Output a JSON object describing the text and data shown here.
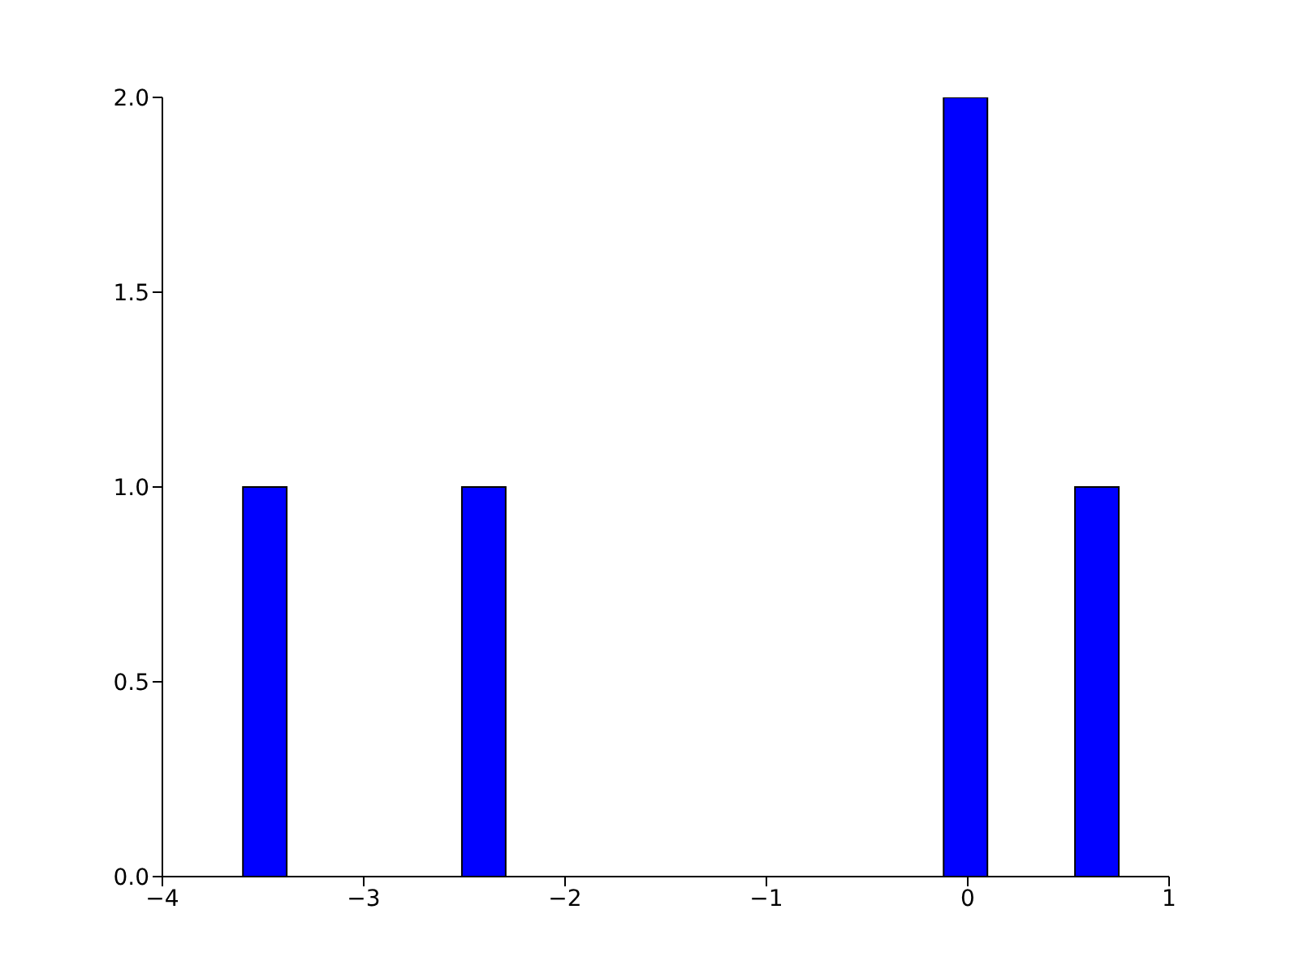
{
  "chart_data": {
    "type": "histogram",
    "bins": [
      -3.6,
      -3.3825,
      -3.165,
      -2.9475,
      -2.73,
      -2.5125,
      -2.295,
      -2.0775,
      -1.86,
      -1.6425,
      -1.425,
      -1.2075,
      -0.99,
      -0.7725,
      -0.555,
      -0.3375,
      -0.12,
      0.0975,
      0.315,
      0.5325,
      0.75
    ],
    "values": [
      1,
      0,
      0,
      0,
      0,
      1,
      0,
      0,
      0,
      0,
      0,
      0,
      0,
      0,
      0,
      0,
      2,
      0,
      0,
      1
    ],
    "color": "#0000ff",
    "xlim": [
      -4,
      1
    ],
    "xticks": [
      -4,
      -3,
      -2,
      -1,
      0,
      1
    ],
    "ylim": [
      0,
      2
    ],
    "yticks": [
      {
        "value": 0,
        "label": "0.0"
      },
      {
        "value": 0.5,
        "label": "0.5"
      },
      {
        "value": 1,
        "label": "1.0"
      },
      {
        "value": 1.5,
        "label": "1.5"
      },
      {
        "value": 2,
        "label": "2.0"
      }
    ],
    "grid": false
  }
}
